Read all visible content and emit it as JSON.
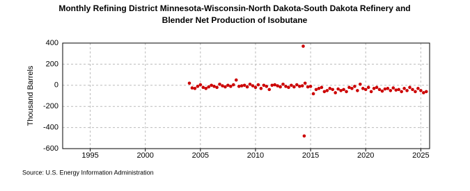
{
  "chart_data": {
    "type": "scatter",
    "title": [
      "Monthly Refining District Minnesota-Wisconsin-North Dakota-South Dakota Refinery and",
      "Blender Net Production of Isobutane"
    ],
    "ylabel": "Thousand Barrels",
    "source": "Source: U.S. Energy Information Administration",
    "color": "#cc0000",
    "grid": true,
    "xlim": [
      1992.5,
      2025.8
    ],
    "xticks": [
      1995,
      2000,
      2005,
      2010,
      2015,
      2020,
      2025
    ],
    "ylim": [
      -600,
      400
    ],
    "yticks": [
      -600,
      -400,
      -200,
      0,
      200,
      400
    ],
    "x": [
      2004.0,
      2004.25,
      2004.5,
      2004.75,
      2005.0,
      2005.25,
      2005.5,
      2005.75,
      2006.0,
      2006.25,
      2006.5,
      2006.75,
      2007.0,
      2007.25,
      2007.5,
      2007.75,
      2008.0,
      2008.25,
      2008.5,
      2008.75,
      2009.0,
      2009.25,
      2009.5,
      2009.75,
      2010.0,
      2010.25,
      2010.5,
      2010.75,
      2011.0,
      2011.25,
      2011.5,
      2011.75,
      2012.0,
      2012.25,
      2012.5,
      2012.75,
      2013.0,
      2013.25,
      2013.5,
      2013.75,
      2014.0,
      2014.25,
      2014.33,
      2014.42,
      2014.5,
      2014.75,
      2015.0,
      2015.25,
      2015.5,
      2015.75,
      2016.0,
      2016.25,
      2016.5,
      2016.75,
      2017.0,
      2017.25,
      2017.5,
      2017.75,
      2018.0,
      2018.25,
      2018.5,
      2018.75,
      2019.0,
      2019.25,
      2019.5,
      2019.75,
      2020.0,
      2020.25,
      2020.5,
      2020.75,
      2021.0,
      2021.25,
      2021.5,
      2021.75,
      2022.0,
      2022.25,
      2022.5,
      2022.75,
      2023.0,
      2023.25,
      2023.5,
      2023.75,
      2024.0,
      2024.25,
      2024.5,
      2024.75,
      2025.0,
      2025.25,
      2025.5
    ],
    "values": [
      20,
      -25,
      -30,
      -10,
      5,
      -20,
      -30,
      -15,
      0,
      -10,
      -20,
      10,
      -5,
      -15,
      0,
      -10,
      5,
      50,
      -10,
      -5,
      0,
      -15,
      10,
      -5,
      -20,
      5,
      -30,
      0,
      -10,
      -40,
      0,
      5,
      -5,
      -15,
      10,
      -10,
      -20,
      0,
      -15,
      5,
      -10,
      -5,
      370,
      -480,
      20,
      -15,
      -10,
      -80,
      -40,
      -30,
      -20,
      -60,
      -50,
      -30,
      -40,
      -70,
      -35,
      -50,
      -40,
      -60,
      -20,
      -30,
      -10,
      -50,
      10,
      -30,
      -40,
      -20,
      -60,
      -30,
      -20,
      -40,
      -55,
      -35,
      -30,
      -50,
      -25,
      -45,
      -40,
      -60,
      -30,
      -50,
      -20,
      -40,
      -60,
      -30,
      -50,
      -70,
      -60
    ]
  }
}
